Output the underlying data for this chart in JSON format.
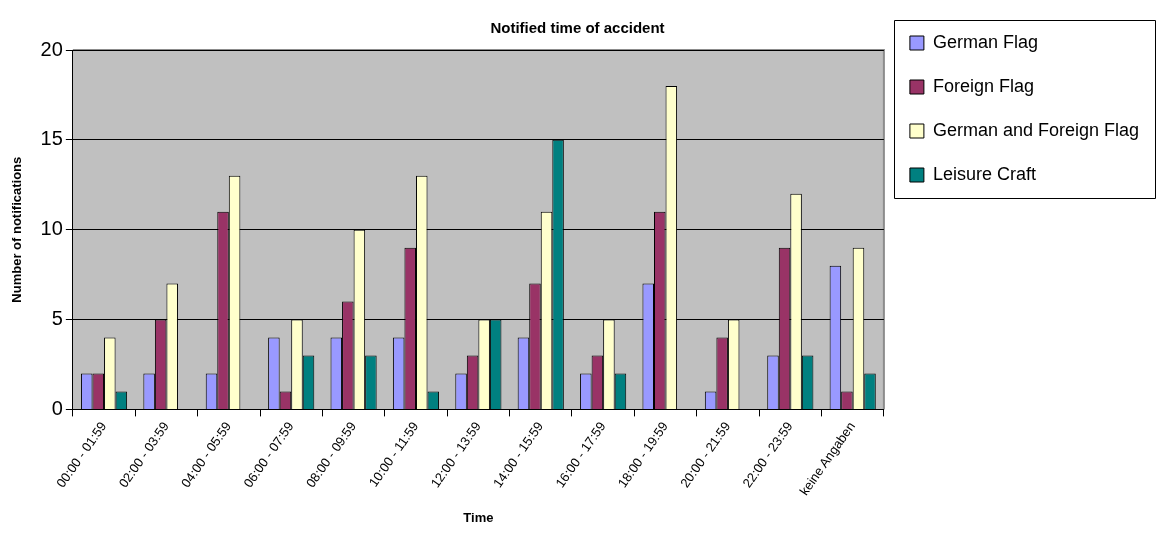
{
  "chart_data": {
    "type": "bar",
    "title": "Notified time of accident",
    "xlabel": "Time",
    "ylabel": "Number of notifications",
    "categories": [
      "00:00 - 01:59",
      "02:00 - 03:59",
      "04:00 - 05:59",
      "06:00 - 07:59",
      "08:00 - 09:59",
      "10:00 - 11:59",
      "12:00 - 13:59",
      "14:00 - 15:59",
      "16:00 - 17:59",
      "18:00 - 19:59",
      "20:00 - 21:59",
      "22:00 - 23:59",
      "keine Angaben"
    ],
    "series": [
      {
        "name": "German Flag",
        "color": "#9999ff",
        "values": [
          2,
          2,
          2,
          4,
          4,
          4,
          2,
          4,
          2,
          7,
          1,
          3,
          8
        ]
      },
      {
        "name": "Foreign Flag",
        "color": "#993366",
        "values": [
          2,
          5,
          11,
          1,
          6,
          9,
          3,
          7,
          3,
          11,
          4,
          9,
          1
        ]
      },
      {
        "name": "German and Foreign Flag",
        "color": "#ffffcc",
        "values": [
          4,
          7,
          13,
          5,
          10,
          13,
          5,
          11,
          5,
          18,
          5,
          12,
          9
        ]
      },
      {
        "name": "Leisure Craft",
        "color": "#008080",
        "values": [
          1,
          0,
          0,
          3,
          3,
          1,
          5,
          15,
          2,
          0,
          0,
          3,
          2
        ]
      }
    ],
    "ylim": [
      0,
      20
    ],
    "yticks": [
      0,
      5,
      10,
      15,
      20
    ],
    "grid": "y",
    "legend": "top right"
  }
}
